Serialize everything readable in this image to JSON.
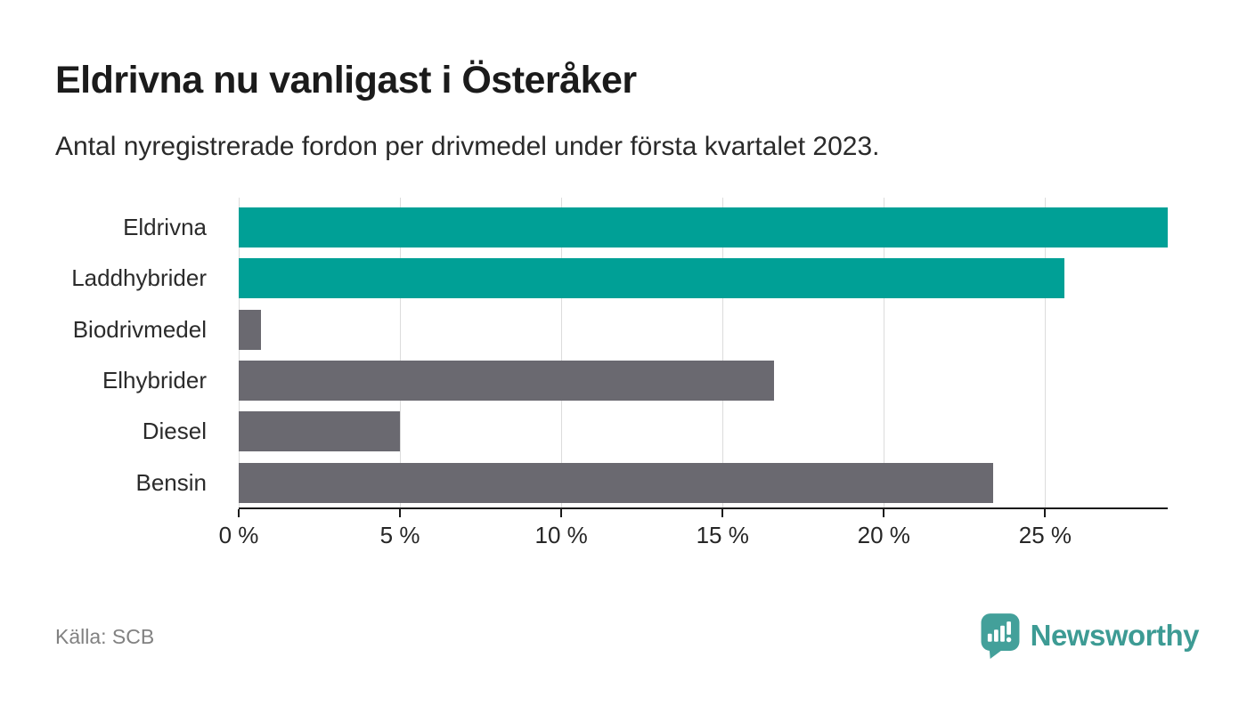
{
  "header": {
    "title": "Eldrivna nu vanligast i Österåker",
    "subtitle": "Antal nyregistrerade fordon per drivmedel under första kvartalet 2023."
  },
  "chart_data": {
    "type": "bar",
    "orientation": "horizontal",
    "title": "Eldrivna nu vanligast i Österåker",
    "subtitle": "Antal nyregistrerade fordon per drivmedel under första kvartalet 2023.",
    "categories": [
      "Eldrivna",
      "Laddhybrider",
      "Biodrivmedel",
      "Elhybrider",
      "Diesel",
      "Bensin"
    ],
    "values": [
      28.8,
      25.6,
      0.7,
      16.6,
      5.0,
      23.4
    ],
    "bar_colors": [
      "#00a096",
      "#00a096",
      "#6a6970",
      "#6a6970",
      "#6a6970",
      "#6a6970"
    ],
    "unit": "%",
    "xlim": [
      0,
      28.8
    ],
    "x_ticks": [
      0,
      5,
      10,
      15,
      20,
      25
    ],
    "x_tick_labels": [
      "0 %",
      "5 %",
      "10 %",
      "15 %",
      "20 %",
      "25 %"
    ],
    "grid": "vertical",
    "legend": "none"
  },
  "footer": {
    "source": "Källa: SCB",
    "logo_text": "Newsworthy"
  },
  "colors": {
    "bar_teal": "#00a096",
    "bar_gray": "#6a6970",
    "gridline": "#dcdcdc",
    "axis": "#1a1a1a",
    "source_text": "#818181",
    "logo_teal": "#3d9b94"
  }
}
